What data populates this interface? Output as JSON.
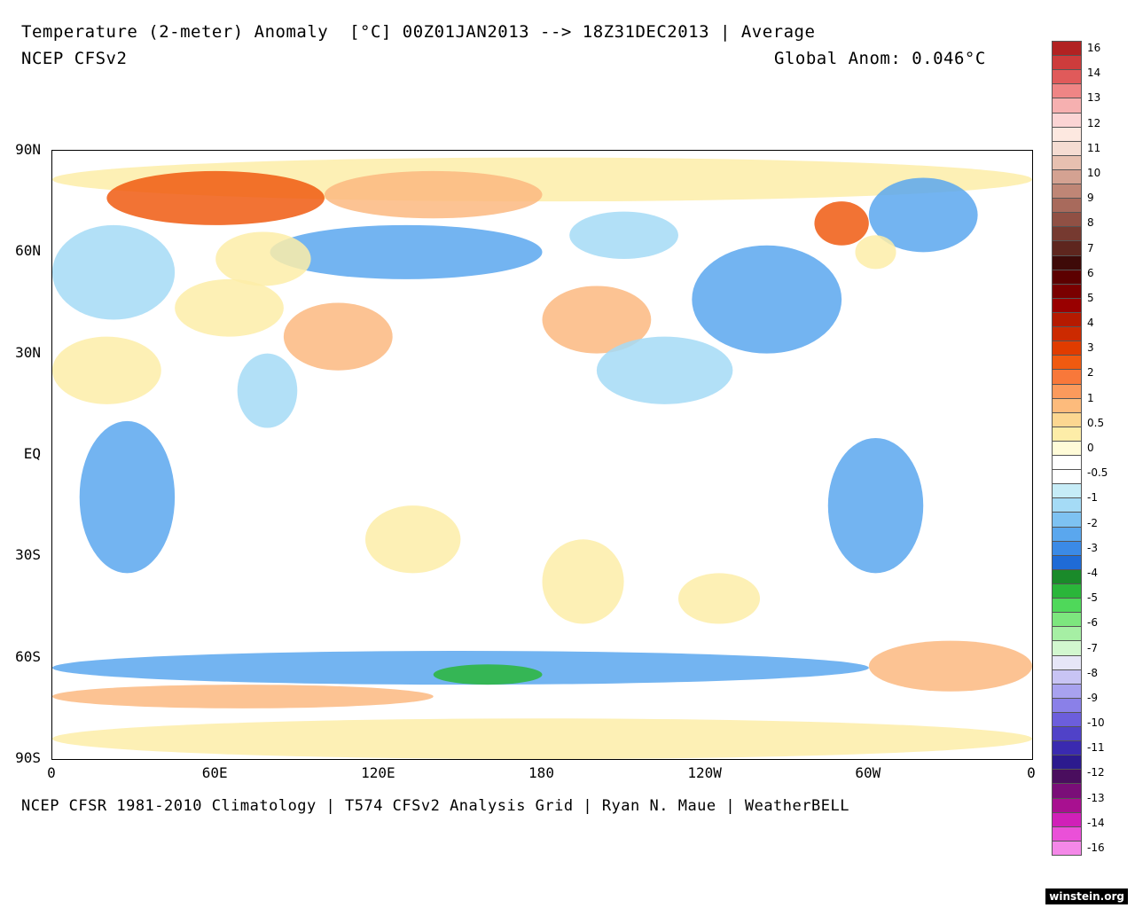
{
  "header": {
    "title": "Temperature (2-meter) Anomaly  [°C] 00Z01JAN2013 --> 18Z31DEC2013 | Average",
    "model": "NCEP CFSv2",
    "global_anom": "Global Anom: 0.046°C"
  },
  "footer": "NCEP CFSR 1981-2010 Climatology | T574 CFSv2 Analysis Grid | Ryan N. Maue | WeatherBELL",
  "watermark": "winstein.org",
  "axes": {
    "lat_labels": [
      "90N",
      "60N",
      "30N",
      "EQ",
      "30S",
      "60S",
      "90S"
    ],
    "lon_labels": [
      "0",
      "60E",
      "120E",
      "180",
      "120W",
      "60W",
      "0"
    ]
  },
  "colorbar": {
    "labels": [
      "16",
      "14",
      "13",
      "12",
      "11",
      "10",
      "9",
      "8",
      "7",
      "6",
      "5",
      "4",
      "3",
      "2",
      "1",
      "0.5",
      "0",
      "-0.5",
      "-1",
      "-2",
      "-3",
      "-4",
      "-5",
      "-6",
      "-7",
      "-8",
      "-9",
      "-10",
      "-11",
      "-12",
      "-13",
      "-14",
      "-16"
    ],
    "colors": [
      "#b22222",
      "#cd3c3c",
      "#e05a5a",
      "#ef8585",
      "#f6b0b0",
      "#fbd4d4",
      "#fde8e0",
      "#f5dcd2",
      "#e7c0b0",
      "#d4a292",
      "#bf8676",
      "#a86a5c",
      "#905044",
      "#763a30",
      "#5e261e",
      "#3e0a08",
      "#5c0000",
      "#7a0000",
      "#990000",
      "#b51a00",
      "#cc2a00",
      "#e03c00",
      "#f05a10",
      "#f8783a",
      "#fb9a5c",
      "#fdbb7c",
      "#fcd791",
      "#fdeda8",
      "#fffbd8",
      "#ffffff",
      "#ffffff",
      "#c6ecf7",
      "#a5dbf6",
      "#7ec2f2",
      "#5aa7ee",
      "#3b8ae6",
      "#1f6bd6",
      "#1a8a2a",
      "#2ab63a",
      "#4fd85a",
      "#7de67e",
      "#a6efa4",
      "#d2f7cf",
      "#e6e6f7",
      "#c8c4f4",
      "#a8a2ef",
      "#8a80e8",
      "#6c5edc",
      "#5042c8",
      "#3a2ab0",
      "#2c1a8e",
      "#4a0e5e",
      "#7a0e78",
      "#a81090",
      "#d020b8",
      "#ea50d8",
      "#f488e8"
    ]
  },
  "map": {
    "regions": [
      {
        "name": "arctic-ocean",
        "lon": [
          0,
          360
        ],
        "lat": [
          75,
          88
        ],
        "level": 1
      },
      {
        "name": "barents-kara",
        "lon": [
          20,
          100
        ],
        "lat": [
          68,
          84
        ],
        "level": 3
      },
      {
        "name": "laptev-siberian",
        "lon": [
          100,
          180
        ],
        "lat": [
          70,
          84
        ],
        "level": 2
      },
      {
        "name": "eastern-siberia",
        "lon": [
          80,
          180
        ],
        "lat": [
          52,
          68
        ],
        "level": -2
      },
      {
        "name": "western-siberia",
        "lon": [
          60,
          95
        ],
        "lat": [
          50,
          66
        ],
        "level": 1
      },
      {
        "name": "europe",
        "lon": [
          0,
          45
        ],
        "lat": [
          40,
          68
        ],
        "level": -1
      },
      {
        "name": "central-asia",
        "lon": [
          45,
          85
        ],
        "lat": [
          35,
          52
        ],
        "level": 1
      },
      {
        "name": "china-plateau",
        "lon": [
          85,
          125
        ],
        "lat": [
          25,
          45
        ],
        "level": 2
      },
      {
        "name": "india",
        "lon": [
          68,
          90
        ],
        "lat": [
          8,
          30
        ],
        "level": -1
      },
      {
        "name": "africa-east",
        "lon": [
          10,
          45
        ],
        "lat": [
          -35,
          10
        ],
        "level": -2
      },
      {
        "name": "sahara",
        "lon": [
          0,
          40
        ],
        "lat": [
          15,
          35
        ],
        "level": 1
      },
      {
        "name": "north-pacific-warm",
        "lon": [
          180,
          220
        ],
        "lat": [
          30,
          50
        ],
        "level": 2
      },
      {
        "name": "subtropical-east-pacific",
        "lon": [
          200,
          250
        ],
        "lat": [
          15,
          35
        ],
        "level": -1
      },
      {
        "name": "north-america",
        "lon": [
          235,
          290
        ],
        "lat": [
          30,
          62
        ],
        "level": -2
      },
      {
        "name": "alaska",
        "lon": [
          190,
          230
        ],
        "lat": [
          58,
          72
        ],
        "level": -1
      },
      {
        "name": "greenland",
        "lon": [
          300,
          340
        ],
        "lat": [
          60,
          82
        ],
        "level": -2
      },
      {
        "name": "baffin",
        "lon": [
          280,
          300
        ],
        "lat": [
          62,
          75
        ],
        "level": 3
      },
      {
        "name": "labrador",
        "lon": [
          295,
          310
        ],
        "lat": [
          55,
          65
        ],
        "level": 1
      },
      {
        "name": "south-america",
        "lon": [
          285,
          320
        ],
        "lat": [
          -35,
          5
        ],
        "level": -2
      },
      {
        "name": "australia",
        "lon": [
          115,
          150
        ],
        "lat": [
          -35,
          -15
        ],
        "level": 1
      },
      {
        "name": "tasman-south-pacific",
        "lon": [
          180,
          210
        ],
        "lat": [
          -50,
          -25
        ],
        "level": 1
      },
      {
        "name": "southern-pacific",
        "lon": [
          230,
          260
        ],
        "lat": [
          -50,
          -35
        ],
        "level": 1
      },
      {
        "name": "southern-ocean-blue",
        "lon": [
          0,
          300
        ],
        "lat": [
          -68,
          -58
        ],
        "level": -2
      },
      {
        "name": "ross-sea-green",
        "lon": [
          140,
          180
        ],
        "lat": [
          -68,
          -62
        ],
        "level": -4
      },
      {
        "name": "weddell-warm",
        "lon": [
          300,
          360
        ],
        "lat": [
          -70,
          -55
        ],
        "level": 2
      },
      {
        "name": "antarctic-interior",
        "lon": [
          0,
          360
        ],
        "lat": [
          -90,
          -78
        ],
        "level": 1
      },
      {
        "name": "east-antarctic-coast",
        "lon": [
          0,
          140
        ],
        "lat": [
          -75,
          -68
        ],
        "level": 2
      }
    ]
  }
}
